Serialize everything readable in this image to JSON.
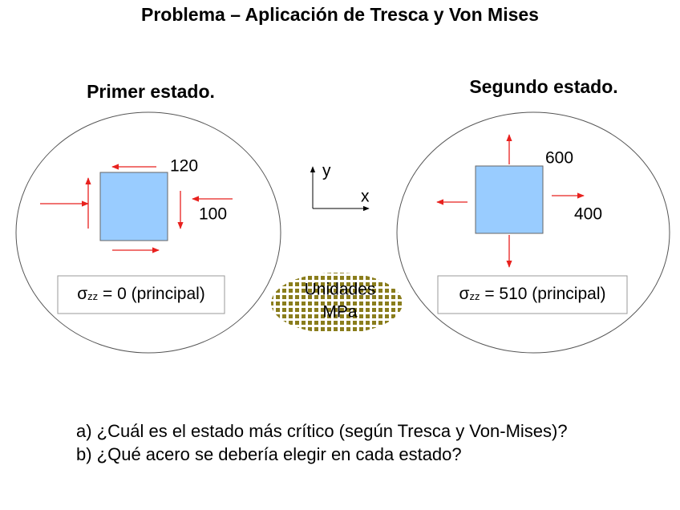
{
  "title": "Problema – Aplicación de Tresca y Von Mises",
  "state1": {
    "title": "Primer estado.",
    "stress_a": "120",
    "stress_b": "100",
    "sigma": "σ",
    "sub": "zz",
    "rest": " = 0 (principal)"
  },
  "state2": {
    "title": "Segundo estado.",
    "stress_a": "600",
    "stress_b": "400",
    "sigma": "σ",
    "sub": "zz",
    "rest": " = 510 (principal)"
  },
  "axes": {
    "y": "y",
    "x": "x"
  },
  "units": {
    "line1": "Unidades",
    "line2": "MPa"
  },
  "questions": [
    "a) ¿Cuál es el estado más crítico (según Tresca y Von-Mises)?",
    "b) ¿Qué acero se debería elegir en cada estado?"
  ]
}
